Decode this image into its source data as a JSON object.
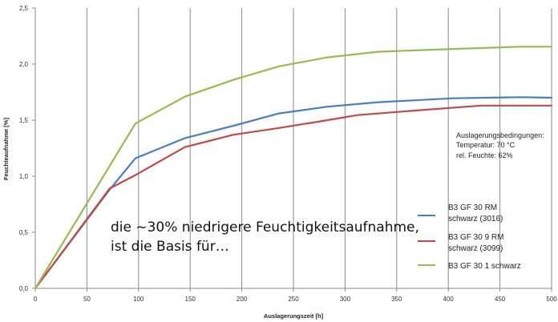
{
  "chart_data": {
    "type": "line",
    "xlabel": "Auslagerungszeit [h]",
    "ylabel": "Feuchteaufnahme [%]",
    "xlim": [
      0,
      500
    ],
    "ylim": [
      0,
      2.5
    ],
    "x_ticks": [
      "0",
      "50",
      "100",
      "150",
      "200",
      "250",
      "300",
      "350",
      "400",
      "450",
      "500"
    ],
    "y_ticks": [
      "0,0",
      "0,5",
      "1,0",
      "1,5",
      "2,0",
      "2,5"
    ],
    "grid": "vertical",
    "legend_position": "bottom-right",
    "annotation_lines": [
      "Auslagerungsbedingungen:",
      "Temperatur: 70 °C",
      "rel. Feuchte: 62%"
    ],
    "overlay_text_lines": [
      "die ~30% niedrigere Feuchtigkeitsaufnahme,",
      "ist die Basis für…"
    ],
    "series": [
      {
        "name_lines": [
          "B3  GF  30 RM",
          "schwarz (3016)"
        ],
        "color": "#4a7ebb",
        "x": [
          0,
          72,
          97,
          145,
          192,
          236,
          283,
          332,
          405,
          470,
          500
        ],
        "y": [
          0,
          0.88,
          1.16,
          1.34,
          1.45,
          1.56,
          1.62,
          1.66,
          1.695,
          1.705,
          1.7
        ]
      },
      {
        "name_lines": [
          "B3  GF  30  9 RM",
          "schwarz (3099)"
        ],
        "color": "#be4b48",
        "x": [
          0,
          72,
          97,
          145,
          192,
          236,
          283,
          312,
          360,
          432,
          500
        ],
        "y": [
          0,
          0.89,
          1.01,
          1.26,
          1.37,
          1.43,
          1.5,
          1.545,
          1.58,
          1.63,
          1.63
        ]
      },
      {
        "name_lines": [
          "B3  GF  30 1 schwarz"
        ],
        "color": "#98b954",
        "x": [
          0,
          97,
          145,
          192,
          236,
          283,
          332,
          405,
          470,
          500
        ],
        "y": [
          0,
          1.47,
          1.71,
          1.86,
          1.98,
          2.06,
          2.11,
          2.135,
          2.155,
          2.155
        ]
      }
    ]
  }
}
